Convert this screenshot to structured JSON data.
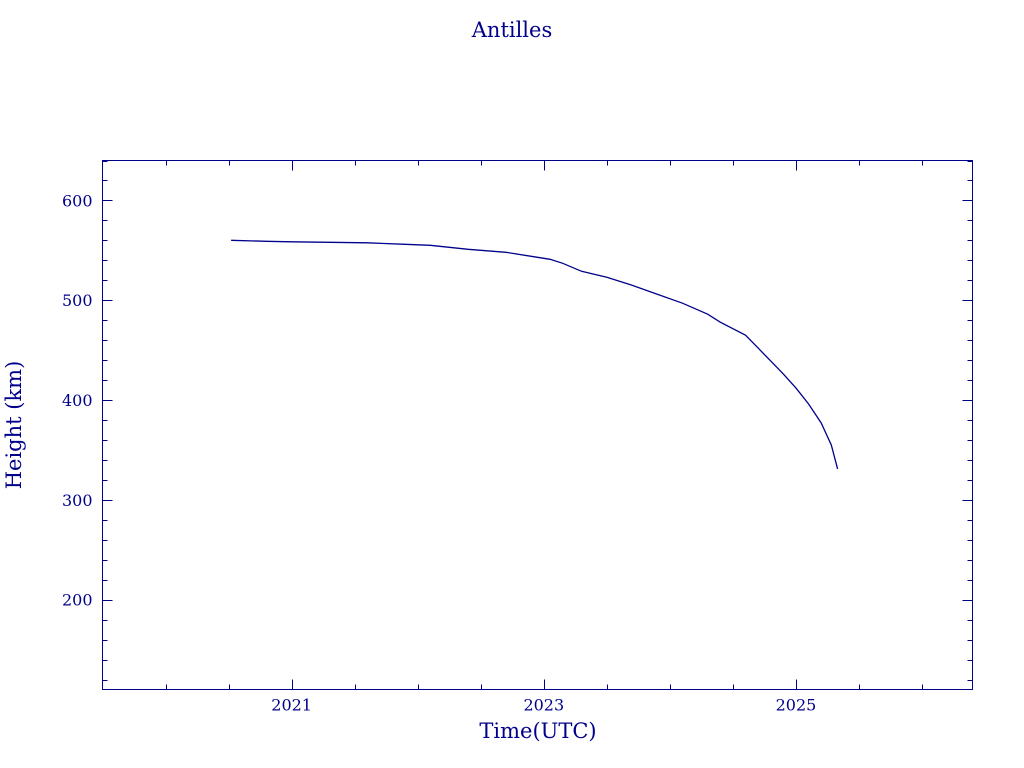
{
  "chart_data": {
    "type": "line",
    "title": "Antilles",
    "xlabel": "Time(UTC)",
    "ylabel": "Height (km)",
    "xlim": [
      2019.5,
      2026.4
    ],
    "ylim": [
      110,
      640
    ],
    "x_ticks": [
      2021,
      2023,
      2025
    ],
    "x_tick_labels": [
      "2021",
      "2023",
      "2025"
    ],
    "y_ticks": [
      200,
      300,
      400,
      500,
      600
    ],
    "y_tick_labels": [
      "200",
      "300",
      "400",
      "500",
      "600"
    ],
    "grid": false,
    "line_color": "#00008b",
    "series": [
      {
        "x": [
          2020.52,
          2020.8,
          2021.0,
          2021.3,
          2021.6,
          2021.9,
          2022.1,
          2022.4,
          2022.7,
          2022.9,
          2023.05,
          2023.15,
          2023.3,
          2023.5,
          2023.7,
          2023.9,
          2024.1,
          2024.3,
          2024.4,
          2024.6,
          2024.7,
          2024.8,
          2024.9,
          2025.0,
          2025.1,
          2025.2,
          2025.28,
          2025.33
        ],
        "y": [
          560,
          559,
          558.5,
          558,
          557.5,
          556,
          555,
          551,
          548,
          544,
          541,
          537,
          529,
          523,
          515,
          506,
          497,
          486,
          478,
          465,
          452,
          439,
          426,
          412,
          396,
          377,
          355,
          331
        ]
      }
    ]
  },
  "colors": {
    "axis": "#00008b",
    "text": "#00008b",
    "background": "#ffffff"
  }
}
